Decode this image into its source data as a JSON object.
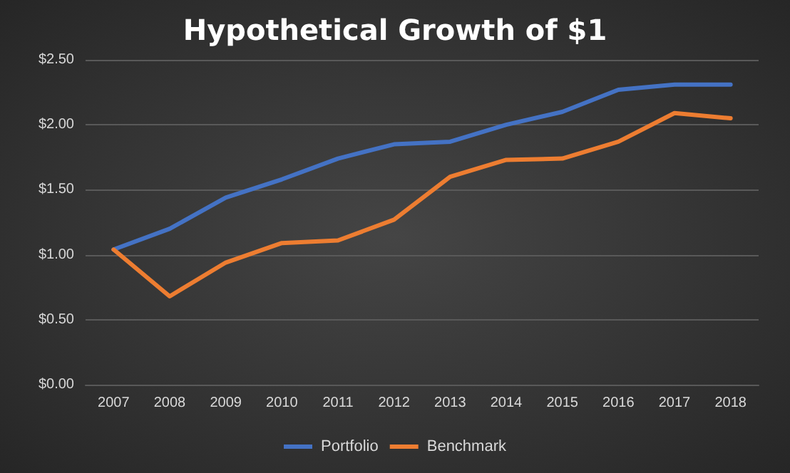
{
  "chart_data": {
    "type": "line",
    "title": "Hypothetical Growth of $1",
    "categories": [
      "2007",
      "2008",
      "2009",
      "2010",
      "2011",
      "2012",
      "2013",
      "2014",
      "2015",
      "2016",
      "2017",
      "2018"
    ],
    "series": [
      {
        "name": "Portfolio",
        "color": "#4472c4",
        "values": [
          1.04,
          1.2,
          1.44,
          1.58,
          1.74,
          1.85,
          1.87,
          2.0,
          2.1,
          2.27,
          2.31,
          2.31
        ]
      },
      {
        "name": "Benchmark",
        "color": "#ed7d31",
        "values": [
          1.04,
          0.68,
          0.94,
          1.09,
          1.11,
          1.27,
          1.6,
          1.73,
          1.74,
          1.87,
          2.09,
          2.05
        ]
      }
    ],
    "ylim": [
      0,
      2.5
    ],
    "yticks": [
      {
        "value": 0,
        "label": "$0.00"
      },
      {
        "value": 0.5,
        "label": "$0.50"
      },
      {
        "value": 1,
        "label": "$1.00"
      },
      {
        "value": 1.5,
        "label": "$1.50"
      },
      {
        "value": 2,
        "label": "$2.00"
      },
      {
        "value": 2.5,
        "label": "$2.50"
      }
    ],
    "grid": "y",
    "legend": "bottom",
    "marker": "none",
    "line_style": "solid"
  }
}
